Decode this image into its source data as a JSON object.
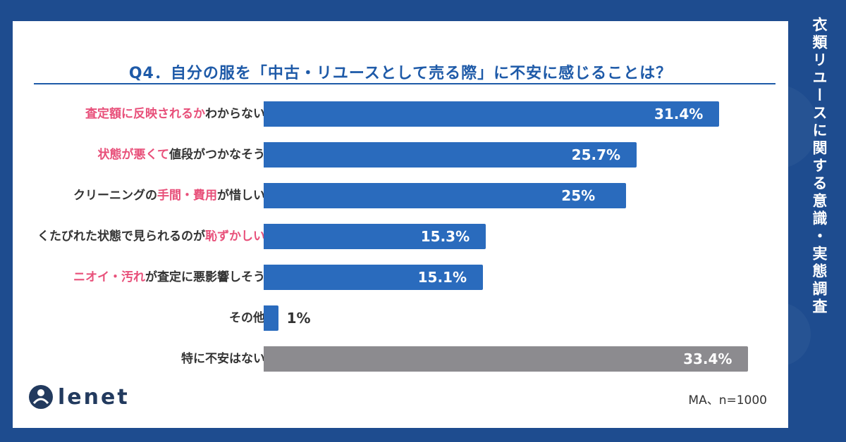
{
  "side_title": "衣類リユースに関する意識・実態調査",
  "brand": "lenet",
  "sample_note": "MA、n=1000",
  "colors": {
    "bar": "#2a6bbd",
    "bar_other": "#8c8b8f",
    "highlight": "#e8507a",
    "title": "#1e5aa8"
  },
  "chart_data": {
    "type": "bar",
    "orientation": "horizontal",
    "title": "Q4．自分の服を「中古・リユースとして売る際」に不安に感じることは？",
    "xlim": [
      0,
      35
    ],
    "unit": "%",
    "categories": [
      "査定額に反映されるかわからない",
      "状態が悪くて値段がつかなそう",
      "クリーニングの手間・費用が惜しい",
      "くたびれた状態で見られるのが恥ずかしい",
      "ニオイ・汚れが査定に悪影響しそう",
      "その他",
      "特に不安はない"
    ],
    "label_parts": [
      [
        {
          "t": "査定額に反映されるか",
          "hl": true
        },
        {
          "t": "わからない",
          "hl": false
        }
      ],
      [
        {
          "t": "状態が悪くて",
          "hl": true
        },
        {
          "t": "値段がつかなそう",
          "hl": false
        }
      ],
      [
        {
          "t": "クリーニングの",
          "hl": false
        },
        {
          "t": "手間・費用",
          "hl": true
        },
        {
          "t": "が惜しい",
          "hl": false
        }
      ],
      [
        {
          "t": "くたびれた状態で見られるのが",
          "hl": false
        },
        {
          "t": "恥ずかしい",
          "hl": true
        }
      ],
      [
        {
          "t": "ニオイ・汚れ",
          "hl": true
        },
        {
          "t": "が査定に悪影響しそう",
          "hl": false
        }
      ],
      [
        {
          "t": "その他",
          "hl": false
        }
      ],
      [
        {
          "t": "特に不安はない",
          "hl": false
        }
      ]
    ],
    "values": [
      31.4,
      25.7,
      25,
      15.3,
      15.1,
      1,
      33.4
    ],
    "value_labels": [
      "31.4%",
      "25.7%",
      "25%",
      "15.3%",
      "15.1%",
      "1%",
      "33.4%"
    ],
    "gray_index": 6
  }
}
